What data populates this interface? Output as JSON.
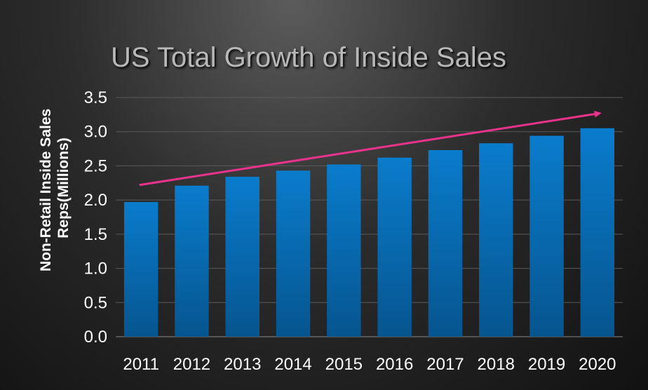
{
  "chart_data": {
    "type": "bar",
    "title": "US Total Growth of Inside Sales",
    "ylabel_lines": [
      "Non-Retail Inside Sales",
      "Reps(Millions)"
    ],
    "xlabel": "",
    "categories": [
      "2011",
      "2012",
      "2013",
      "2014",
      "2015",
      "2016",
      "2017",
      "2018",
      "2019",
      "2020"
    ],
    "values": [
      1.97,
      2.21,
      2.34,
      2.43,
      2.52,
      2.62,
      2.73,
      2.83,
      2.94,
      3.05
    ],
    "ylim": [
      0,
      3.5
    ],
    "yticks": [
      "0.0",
      "0.5",
      "1.0",
      "1.5",
      "2.0",
      "2.5",
      "3.0",
      "3.5"
    ],
    "grid": true,
    "bar_color": "#0a78c8",
    "trend_arrow": {
      "color": "#e8338a",
      "start": {
        "x": "2011",
        "y": 2.22
      },
      "end": {
        "x": "2020",
        "y": 3.27
      }
    }
  }
}
